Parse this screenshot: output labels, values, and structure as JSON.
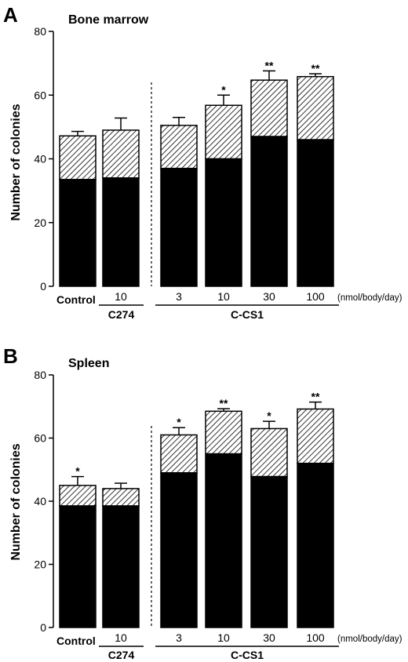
{
  "chart_data": [
    {
      "type": "bar",
      "stacked": true,
      "panel_label": "A",
      "title": "Bone marrow",
      "ylabel": "Number of colonies",
      "xlabel": "",
      "ylim": [
        0,
        80
      ],
      "yticks": [
        "0",
        "20",
        "40",
        "60",
        "80"
      ],
      "categories": [
        "Control",
        "10",
        "3",
        "10",
        "30",
        "100"
      ],
      "unit_label": "(nmol/body/day)",
      "groups": [
        {
          "label": "C274",
          "categories": [
            1
          ]
        },
        {
          "label": "C-CS1",
          "categories": [
            2,
            3,
            4,
            5
          ]
        }
      ],
      "series": [
        {
          "fill": "solid",
          "values": [
            33.5,
            34,
            37,
            40,
            47,
            46
          ]
        },
        {
          "fill": "hatched",
          "values": [
            13.7,
            15,
            13.5,
            16.8,
            17.7,
            19.8
          ]
        }
      ],
      "totals": [
        47.2,
        49,
        50.5,
        56.8,
        64.7,
        65.8
      ],
      "error_upper": [
        48.6,
        52.8,
        53,
        60,
        67.6,
        66.7
      ],
      "significance": [
        "",
        "",
        "",
        "*",
        "**",
        "**"
      ]
    },
    {
      "type": "bar",
      "stacked": true,
      "panel_label": "B",
      "title": "Spleen",
      "ylabel": "Number of colonies",
      "xlabel": "",
      "ylim": [
        0,
        80
      ],
      "yticks": [
        "0",
        "20",
        "40",
        "60",
        "80"
      ],
      "categories": [
        "Control",
        "10",
        "3",
        "10",
        "30",
        "100"
      ],
      "unit_label": "(nmol/body/day)",
      "groups": [
        {
          "label": "C274",
          "categories": [
            1
          ]
        },
        {
          "label": "C-CS1",
          "categories": [
            2,
            3,
            4,
            5
          ]
        }
      ],
      "series": [
        {
          "fill": "solid",
          "values": [
            38.5,
            38.5,
            49,
            55,
            47.8,
            52
          ]
        },
        {
          "fill": "hatched",
          "values": [
            6.5,
            5.5,
            12,
            13.5,
            15.2,
            17.2
          ]
        }
      ],
      "totals": [
        45,
        44,
        61,
        68.5,
        63,
        69.2
      ],
      "error_upper": [
        47.8,
        45.7,
        63.3,
        69.3,
        65.3,
        71.4
      ],
      "significance": [
        "*",
        "",
        "*",
        "**",
        "*",
        "**"
      ]
    }
  ]
}
